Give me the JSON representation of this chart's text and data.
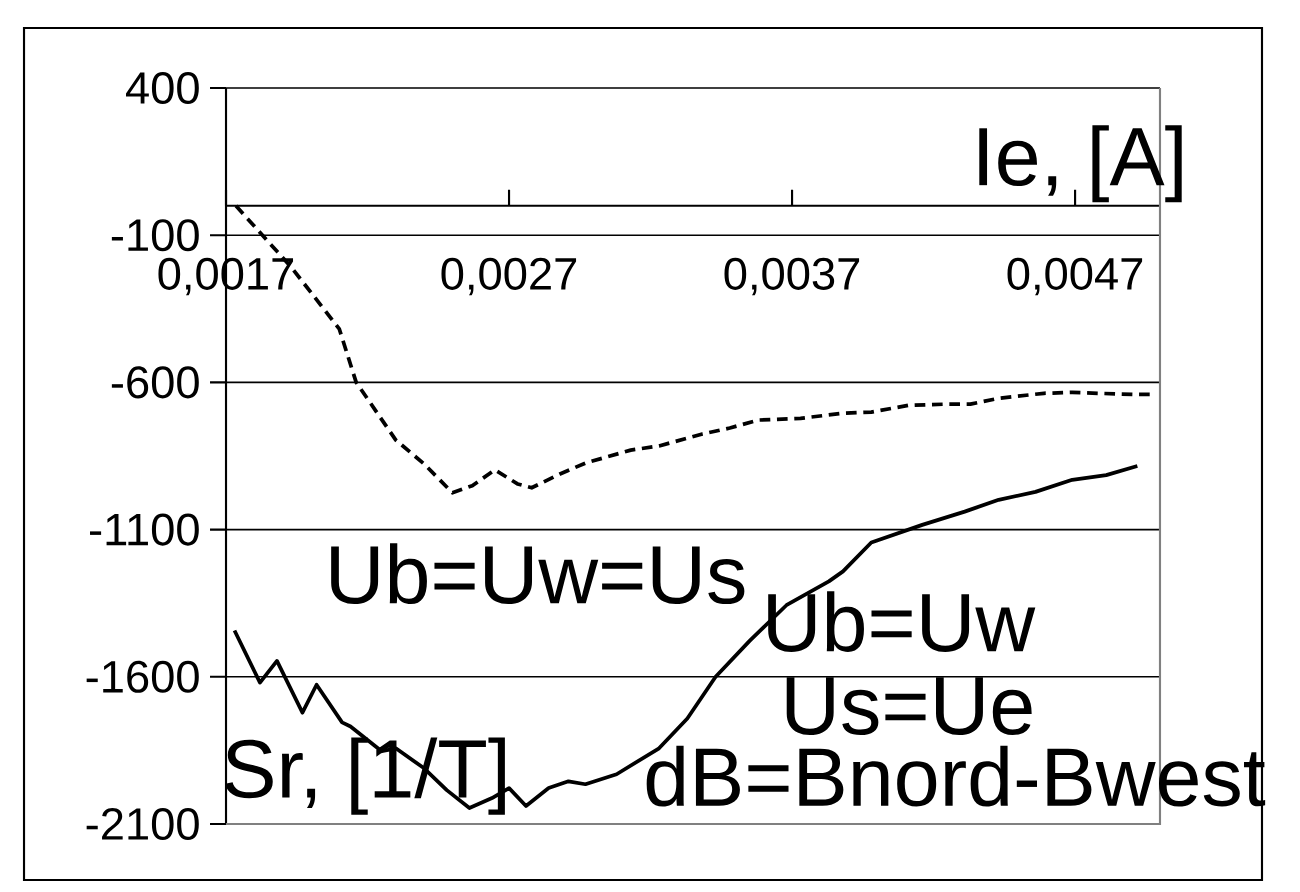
{
  "chart_data": {
    "type": "line",
    "xlabel": "Ie, [A]",
    "ylabel": "Sr, [1/T]",
    "annotations": [
      "Ub=Uw=Us",
      "Ub=Uw",
      "Us=Ue",
      "dB=Bnord-Bwest"
    ],
    "xlim": [
      0.0017,
      0.005
    ],
    "ylim": [
      -2100,
      400
    ],
    "xticks": [
      {
        "value": 0.0017,
        "label": "0,0017"
      },
      {
        "value": 0.0027,
        "label": "0,0027"
      },
      {
        "value": 0.0037,
        "label": "0,0037"
      },
      {
        "value": 0.0047,
        "label": "0,0047"
      }
    ],
    "yticks": [
      400,
      -100,
      -600,
      -1100,
      -1600,
      -2100
    ],
    "grid": "y",
    "series": [
      {
        "color": "#000000",
        "line_style": "dashed",
        "x": [
          0.001735,
          0.00193,
          0.0021,
          0.00216,
          0.0023,
          0.0024,
          0.0025,
          0.00257,
          0.00265,
          0.00273,
          0.00278,
          0.00288,
          0.00297,
          0.00313,
          0.00323,
          0.00338,
          0.00348,
          0.00358,
          0.00373,
          0.00388,
          0.00398,
          0.00411,
          0.00424,
          0.00433,
          0.00443,
          0.00459,
          0.00469,
          0.00478,
          0.00491,
          0.00498
        ],
        "values": [
          0,
          -208,
          -418,
          -600,
          -796,
          -877,
          -975,
          -951,
          -897,
          -945,
          -958,
          -911,
          -874,
          -830,
          -816,
          -776,
          -755,
          -728,
          -722,
          -705,
          -701,
          -678,
          -674,
          -674,
          -654,
          -637,
          -634,
          -637,
          -641,
          -641
        ]
      },
      {
        "color": "#000000",
        "line_style": "solid",
        "x": [
          0.00173,
          0.00182,
          0.00188,
          0.00197,
          0.00202,
          0.00211,
          0.00214,
          0.00225,
          0.0023,
          0.0024,
          0.00248,
          0.00256,
          0.00264,
          0.0027,
          0.00276,
          0.00284,
          0.00291,
          0.00297,
          0.00308,
          0.00323,
          0.00333,
          0.00343,
          0.00355,
          0.00368,
          0.00383,
          0.00388,
          0.00398,
          0.00416,
          0.00431,
          0.00443,
          0.00456,
          0.00469,
          0.00481,
          0.00492
        ],
        "values": [
          -1443,
          -1620,
          -1546,
          -1722,
          -1627,
          -1755,
          -1769,
          -1853,
          -1843,
          -1911,
          -1985,
          -2046,
          -2012,
          -1978,
          -2039,
          -1978,
          -1955,
          -1965,
          -1931,
          -1843,
          -1742,
          -1600,
          -1478,
          -1357,
          -1276,
          -1242,
          -1144,
          -1084,
          -1039,
          -999,
          -972,
          -931,
          -915,
          -884
        ]
      }
    ]
  }
}
